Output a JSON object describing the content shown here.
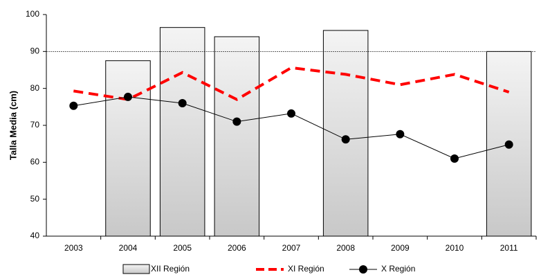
{
  "chart_data": {
    "type": "bar-line",
    "y_label": "Talla Media (cm)",
    "categories": [
      "2003",
      "2004",
      "2005",
      "2006",
      "2007",
      "2008",
      "2009",
      "2010",
      "2011"
    ],
    "series": [
      {
        "name": "XII Región",
        "type": "bar",
        "color": "#c8c8c8",
        "values": [
          null,
          87.5,
          96.5,
          94,
          null,
          95.7,
          null,
          null,
          90
        ]
      },
      {
        "name": "XI Región",
        "type": "line",
        "style": "dashed",
        "color": "#ff0000",
        "values": [
          79.3,
          77,
          84.3,
          77,
          85.6,
          83.8,
          81,
          83.8,
          79
        ]
      },
      {
        "name": "X Región",
        "type": "line",
        "style": "marker",
        "color": "#000000",
        "values": [
          75.3,
          77.7,
          76,
          71,
          73.2,
          66.2,
          67.6,
          61,
          64.8
        ]
      }
    ],
    "reference_line": 90,
    "ylim": [
      40,
      100
    ],
    "yticks": [
      40,
      50,
      60,
      70,
      80,
      90,
      100
    ],
    "grid": false,
    "legend": "bottom"
  }
}
